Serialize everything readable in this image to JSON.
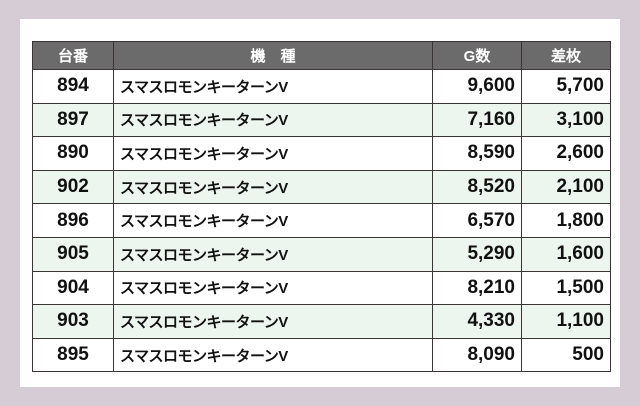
{
  "table": {
    "headers": [
      "台番",
      "機　種",
      "G数",
      "差枚"
    ],
    "rows": [
      {
        "no": "894",
        "machine": "スマスロモンキーターンV",
        "games": "9,600",
        "diff": "5,700"
      },
      {
        "no": "897",
        "machine": "スマスロモンキーターンV",
        "games": "7,160",
        "diff": "3,100"
      },
      {
        "no": "890",
        "machine": "スマスロモンキーターンV",
        "games": "8,590",
        "diff": "2,600"
      },
      {
        "no": "902",
        "machine": "スマスロモンキーターンV",
        "games": "8,520",
        "diff": "2,100"
      },
      {
        "no": "896",
        "machine": "スマスロモンキーターンV",
        "games": "6,570",
        "diff": "1,800"
      },
      {
        "no": "905",
        "machine": "スマスロモンキーターンV",
        "games": "5,290",
        "diff": "1,600"
      },
      {
        "no": "904",
        "machine": "スマスロモンキーターンV",
        "games": "8,210",
        "diff": "1,500"
      },
      {
        "no": "903",
        "machine": "スマスロモンキーターンV",
        "games": "4,330",
        "diff": "1,100"
      },
      {
        "no": "895",
        "machine": "スマスロモンキーターンV",
        "games": "8,090",
        "diff": "500"
      }
    ]
  },
  "colors": {
    "header_bg": "#6b6b6b",
    "alt_row": "#edf5ef",
    "frame": "#d5ccd5"
  }
}
